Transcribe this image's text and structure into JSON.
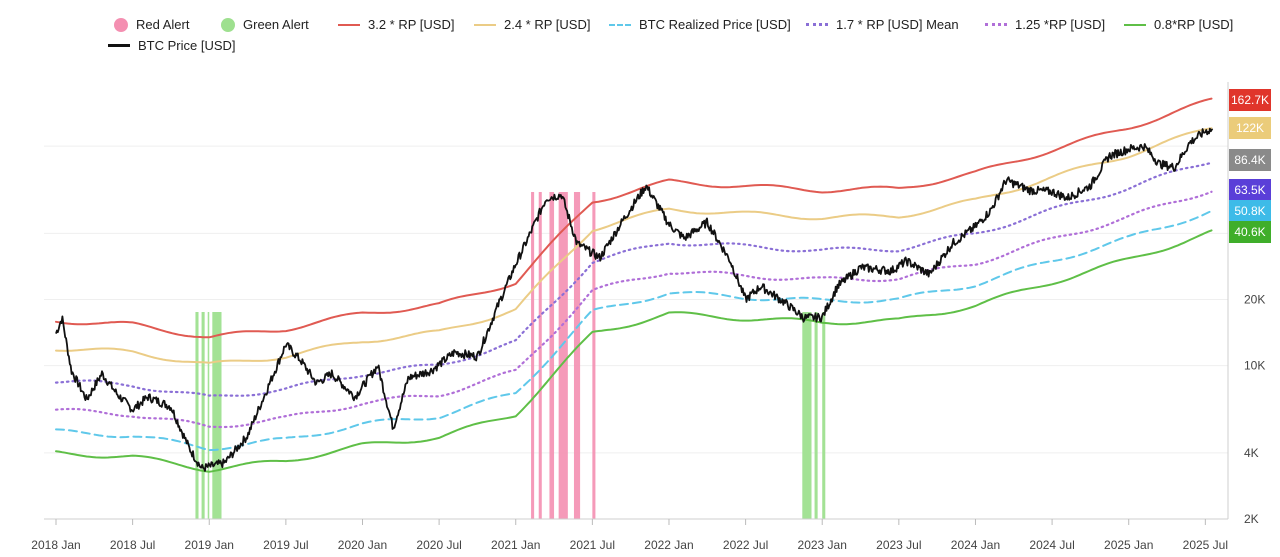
{
  "chart_data": {
    "type": "line",
    "title": "",
    "xlabel": "",
    "ylabel": "",
    "y_scale": "log",
    "ylim": [
      2000,
      200000
    ],
    "y_ticks": [
      {
        "value": 2000,
        "label": "2K"
      },
      {
        "value": 4000,
        "label": "4K"
      },
      {
        "value": 10000,
        "label": "10K"
      },
      {
        "value": 20000,
        "label": "20K"
      }
    ],
    "x_ticks": [
      "2018 Jan",
      "2018 Jul",
      "2019 Jan",
      "2019 Jul",
      "2020 Jan",
      "2020 Jul",
      "2021 Jan",
      "2021 Jul",
      "2022 Jan",
      "2022 Jul",
      "2023 Jan",
      "2023 Jul",
      "2024 Jan",
      "2024 Jul",
      "2025 Jan",
      "2025 Jul"
    ],
    "legend_position": "top",
    "legend": [
      {
        "label": "Red Alert",
        "color": "#f48fb1",
        "style": "dot"
      },
      {
        "label": "Green Alert",
        "color": "#9ee08f",
        "style": "dot"
      },
      {
        "label": "3.2 * RP [USD]",
        "color": "#e05a52",
        "style": "line"
      },
      {
        "label": "2.4 * RP [USD]",
        "color": "#ebcc86",
        "style": "line"
      },
      {
        "label": "BTC Realized Price [USD]",
        "color": "#5fc8ea",
        "style": "dash"
      },
      {
        "label": "1.7 * RP [USD] Mean",
        "color": "#8a6fd6",
        "style": "dots"
      },
      {
        "label": "1.25 *RP [USD]",
        "color": "#b06fd8",
        "style": "dots"
      },
      {
        "label": "0.8*RP [USD]",
        "color": "#5fbf47",
        "style": "line"
      },
      {
        "label": "BTC Price [USD]",
        "color": "#111111",
        "style": "line"
      }
    ],
    "realized_price_anchors": [
      {
        "t": 2018.0,
        "v": 5000
      },
      {
        "t": 2018.5,
        "v": 4800
      },
      {
        "t": 2019.0,
        "v": 4200
      },
      {
        "t": 2019.5,
        "v": 4600
      },
      {
        "t": 2020.0,
        "v": 5400
      },
      {
        "t": 2020.5,
        "v": 5900
      },
      {
        "t": 2021.0,
        "v": 7500
      },
      {
        "t": 2021.5,
        "v": 17500
      },
      {
        "t": 2022.0,
        "v": 21500
      },
      {
        "t": 2022.5,
        "v": 20500
      },
      {
        "t": 2023.0,
        "v": 19700
      },
      {
        "t": 2023.5,
        "v": 20000
      },
      {
        "t": 2024.0,
        "v": 23500
      },
      {
        "t": 2024.5,
        "v": 30000
      },
      {
        "t": 2025.0,
        "v": 38000
      },
      {
        "t": 2025.55,
        "v": 50800
      }
    ],
    "series": [
      {
        "name": "3.2 * RP [USD]",
        "multiplier": 3.2,
        "color": "#e05a52",
        "style": "solid"
      },
      {
        "name": "2.4 * RP [USD]",
        "multiplier": 2.4,
        "color": "#ebcc86",
        "style": "solid"
      },
      {
        "name": "1.7 * RP [USD] Mean",
        "multiplier": 1.7,
        "color": "#8a6fd6",
        "style": "dotted"
      },
      {
        "name": "1.25 *RP [USD]",
        "multiplier": 1.25,
        "color": "#b06fd8",
        "style": "dotted"
      },
      {
        "name": "BTC Realized Price [USD]",
        "multiplier": 1.0,
        "color": "#5fc8ea",
        "style": "dashed"
      },
      {
        "name": "0.8*RP [USD]",
        "multiplier": 0.8,
        "color": "#5fbf47",
        "style": "solid"
      }
    ],
    "btc_price": [
      {
        "t": 2018.0,
        "v": 14000
      },
      {
        "t": 2018.04,
        "v": 16500
      },
      {
        "t": 2018.1,
        "v": 9500
      },
      {
        "t": 2018.2,
        "v": 7000
      },
      {
        "t": 2018.3,
        "v": 9200
      },
      {
        "t": 2018.4,
        "v": 7400
      },
      {
        "t": 2018.5,
        "v": 6300
      },
      {
        "t": 2018.6,
        "v": 7200
      },
      {
        "t": 2018.75,
        "v": 6500
      },
      {
        "t": 2018.87,
        "v": 4200
      },
      {
        "t": 2018.95,
        "v": 3400
      },
      {
        "t": 2019.1,
        "v": 3600
      },
      {
        "t": 2019.25,
        "v": 4800
      },
      {
        "t": 2019.4,
        "v": 8500
      },
      {
        "t": 2019.5,
        "v": 12500
      },
      {
        "t": 2019.6,
        "v": 10500
      },
      {
        "t": 2019.7,
        "v": 8300
      },
      {
        "t": 2019.8,
        "v": 9200
      },
      {
        "t": 2019.95,
        "v": 7200
      },
      {
        "t": 2020.1,
        "v": 10000
      },
      {
        "t": 2020.2,
        "v": 5200
      },
      {
        "t": 2020.3,
        "v": 8800
      },
      {
        "t": 2020.45,
        "v": 9500
      },
      {
        "t": 2020.6,
        "v": 11500
      },
      {
        "t": 2020.75,
        "v": 11000
      },
      {
        "t": 2020.88,
        "v": 18500
      },
      {
        "t": 2021.0,
        "v": 29000
      },
      {
        "t": 2021.08,
        "v": 38000
      },
      {
        "t": 2021.2,
        "v": 58000
      },
      {
        "t": 2021.3,
        "v": 60000
      },
      {
        "t": 2021.4,
        "v": 36000
      },
      {
        "t": 2021.55,
        "v": 31000
      },
      {
        "t": 2021.7,
        "v": 46000
      },
      {
        "t": 2021.85,
        "v": 66000
      },
      {
        "t": 2022.0,
        "v": 44000
      },
      {
        "t": 2022.1,
        "v": 38000
      },
      {
        "t": 2022.25,
        "v": 45000
      },
      {
        "t": 2022.4,
        "v": 30000
      },
      {
        "t": 2022.5,
        "v": 20000
      },
      {
        "t": 2022.6,
        "v": 23000
      },
      {
        "t": 2022.75,
        "v": 19500
      },
      {
        "t": 2022.88,
        "v": 16500
      },
      {
        "t": 2023.0,
        "v": 16600
      },
      {
        "t": 2023.1,
        "v": 23000
      },
      {
        "t": 2023.25,
        "v": 28000
      },
      {
        "t": 2023.45,
        "v": 27000
      },
      {
        "t": 2023.55,
        "v": 30000
      },
      {
        "t": 2023.7,
        "v": 26000
      },
      {
        "t": 2023.85,
        "v": 36000
      },
      {
        "t": 2024.0,
        "v": 43000
      },
      {
        "t": 2024.1,
        "v": 51000
      },
      {
        "t": 2024.2,
        "v": 70000
      },
      {
        "t": 2024.35,
        "v": 63000
      },
      {
        "t": 2024.5,
        "v": 62000
      },
      {
        "t": 2024.6,
        "v": 58000
      },
      {
        "t": 2024.75,
        "v": 66000
      },
      {
        "t": 2024.87,
        "v": 90000
      },
      {
        "t": 2025.0,
        "v": 97000
      },
      {
        "t": 2025.1,
        "v": 100000
      },
      {
        "t": 2025.2,
        "v": 83000
      },
      {
        "t": 2025.3,
        "v": 80000
      },
      {
        "t": 2025.4,
        "v": 104000
      },
      {
        "t": 2025.5,
        "v": 117000
      },
      {
        "t": 2025.55,
        "v": 119000
      }
    ],
    "red_alerts": [
      [
        2021.1,
        2021.12
      ],
      [
        2021.15,
        2021.17
      ],
      [
        2021.22,
        2021.25
      ],
      [
        2021.28,
        2021.34
      ],
      [
        2021.38,
        2021.42
      ],
      [
        2021.5,
        2021.52
      ]
    ],
    "green_alerts": [
      [
        2018.91,
        2018.93
      ],
      [
        2018.95,
        2018.97
      ],
      [
        2018.99,
        2019.0
      ],
      [
        2019.02,
        2019.08
      ],
      [
        2022.87,
        2022.93
      ],
      [
        2022.95,
        2022.97
      ],
      [
        2023.0,
        2023.02
      ]
    ],
    "current_badges": [
      {
        "label": "162.7K",
        "color": "#e0352b"
      },
      {
        "label": "122K",
        "color": "#ebcc7a"
      },
      {
        "label": "86.4K",
        "color": "#8a8a8a"
      },
      {
        "label": "63.5K",
        "color": "#5a3fd8"
      },
      {
        "label": "50.8K",
        "color": "#3dbbe8"
      },
      {
        "label": "40.6K",
        "color": "#3fae2a"
      }
    ]
  }
}
